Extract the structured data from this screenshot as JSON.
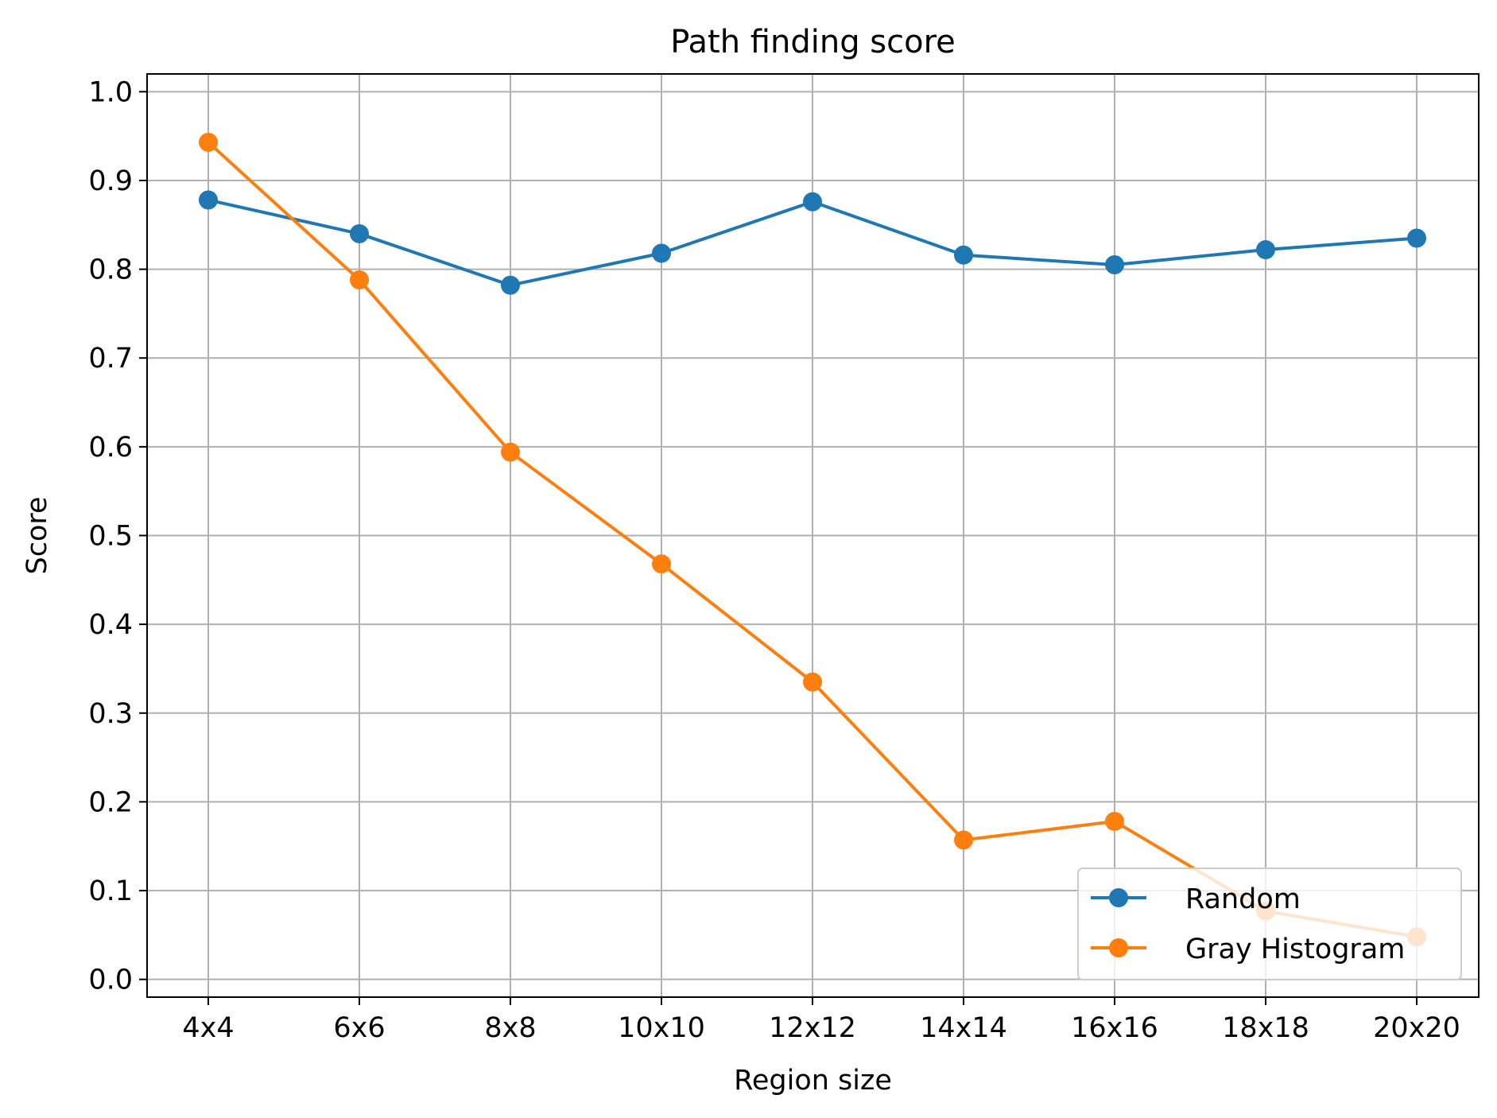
{
  "chart_data": {
    "type": "line",
    "title": "Path finding score",
    "xlabel": "Region size",
    "ylabel": "Score",
    "categories": [
      "4x4",
      "6x6",
      "8x8",
      "10x10",
      "12x12",
      "14x14",
      "16x16",
      "18x18",
      "20x20"
    ],
    "yticks": [
      "0.0",
      "0.1",
      "0.2",
      "0.3",
      "0.4",
      "0.5",
      "0.6",
      "0.7",
      "0.8",
      "0.9",
      "1.0"
    ],
    "ylim": [
      -0.02,
      1.02
    ],
    "grid": true,
    "legend_position": "lower right",
    "series": [
      {
        "name": "Random",
        "color": "#1f77b4",
        "values": [
          0.878,
          0.84,
          0.782,
          0.818,
          0.876,
          0.816,
          0.805,
          0.822,
          0.835
        ]
      },
      {
        "name": "Gray Histogram",
        "color": "#ff7f0e",
        "values": [
          0.943,
          0.788,
          0.594,
          0.468,
          0.335,
          0.157,
          0.178,
          0.077,
          0.048
        ]
      }
    ]
  }
}
